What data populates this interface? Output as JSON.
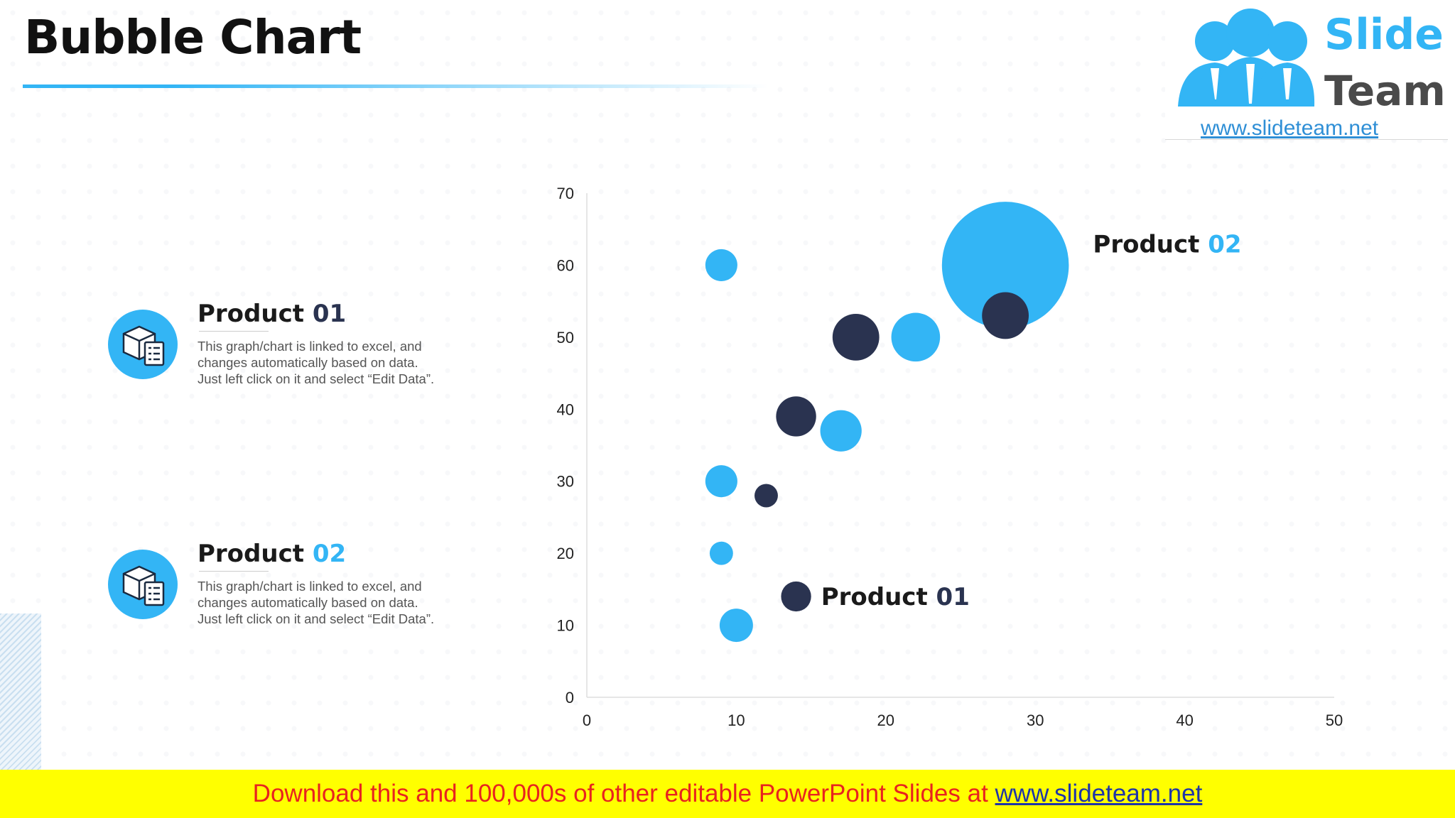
{
  "title": "Bubble Chart",
  "logo": {
    "word1": "Slide",
    "word2": "Team",
    "url": "www.slideteam.net"
  },
  "products": [
    {
      "name": "Product",
      "number": "01",
      "desc_lines": [
        "This graph/chart is linked to excel, and",
        "changes automatically based on data.",
        "Just left click on it and select “Edit Data”."
      ]
    },
    {
      "name": "Product",
      "number": "02",
      "desc_lines": [
        "This graph/chart is linked to excel, and",
        "changes automatically based on data.",
        "Just left click on it and select “Edit Data”."
      ]
    }
  ],
  "banner": {
    "text": "Download this and 100,000s of other editable PowerPoint Slides at ",
    "link": "www.slideteam.net"
  },
  "chart_data": {
    "type": "scatter",
    "title": "",
    "xlabel": "",
    "ylabel": "",
    "xlim": [
      0,
      50
    ],
    "ylim": [
      0,
      70
    ],
    "xticks": [
      "0",
      "10",
      "20",
      "30",
      "40",
      "50"
    ],
    "yticks": [
      "0",
      "10",
      "20",
      "30",
      "40",
      "50",
      "60",
      "70"
    ],
    "grid": false,
    "colors": {
      "series1": "#2a3350",
      "series2": "#33b5f5"
    },
    "series": [
      {
        "name": "Product 01",
        "points": [
          {
            "x": 14,
            "y": 14,
            "size": 4.5
          },
          {
            "x": 12,
            "y": 28,
            "size": 3.5
          },
          {
            "x": 14,
            "y": 39,
            "size": 6
          },
          {
            "x": 18,
            "y": 50,
            "size": 7
          },
          {
            "x": 28,
            "y": 53,
            "size": 7
          }
        ]
      },
      {
        "name": "Product 02",
        "points": [
          {
            "x": 10,
            "y": 10,
            "size": 5
          },
          {
            "x": 9,
            "y": 20,
            "size": 3.5
          },
          {
            "x": 9,
            "y": 30,
            "size": 4.8
          },
          {
            "x": 17,
            "y": 37,
            "size": 6.2
          },
          {
            "x": 22,
            "y": 50,
            "size": 7.3
          },
          {
            "x": 9,
            "y": 60,
            "size": 4.8
          },
          {
            "x": 28,
            "y": 60,
            "size": 19
          }
        ]
      }
    ],
    "annotations": [
      {
        "text1": "Product",
        "text2": "01",
        "series": 0
      },
      {
        "text1": "Product",
        "text2": "02",
        "series": 1
      }
    ]
  }
}
